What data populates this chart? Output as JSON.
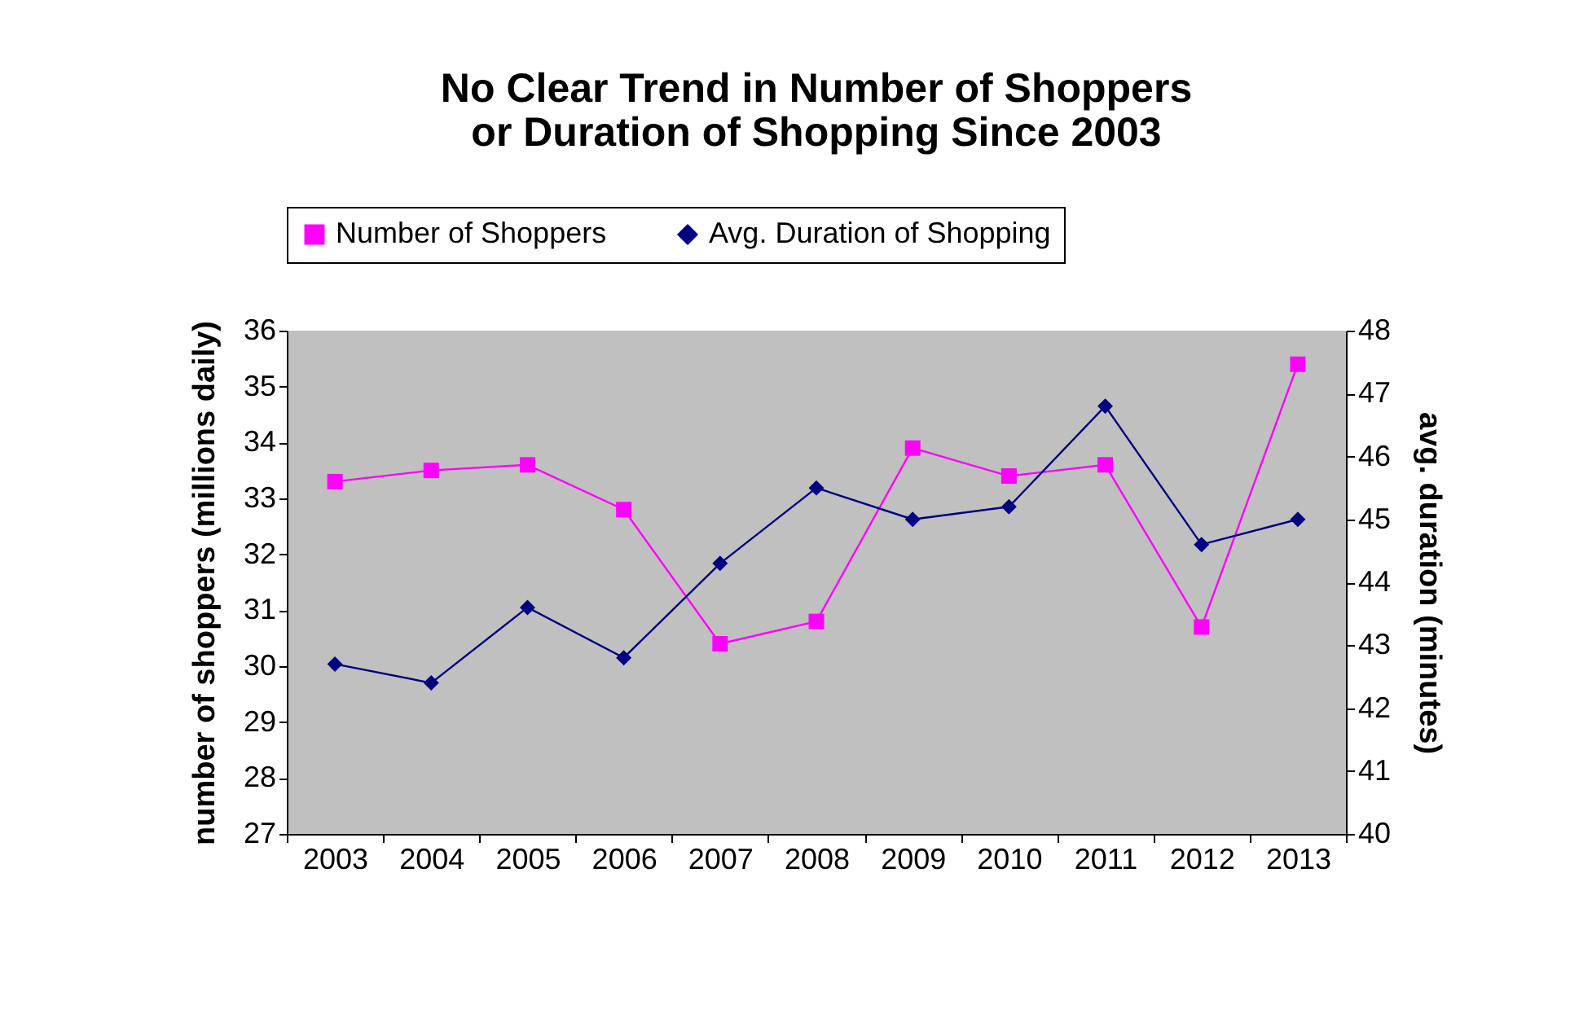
{
  "chart_data": {
    "type": "line",
    "title": [
      "No Clear Trend in Number of Shoppers",
      "or Duration of Shopping Since 2003"
    ],
    "categories": [
      "2003",
      "2004",
      "2005",
      "2006",
      "2007",
      "2008",
      "2009",
      "2010",
      "2011",
      "2012",
      "2013"
    ],
    "series": [
      {
        "name": "Number of Shoppers",
        "color": "#ff00ff",
        "marker": "square",
        "values": [
          33.3,
          33.5,
          33.6,
          32.8,
          30.4,
          30.8,
          33.9,
          33.4,
          33.6,
          30.7,
          35.4
        ]
      },
      {
        "name": "Avg. Duration of Shopping",
        "color": "#000080",
        "marker": "diamond",
        "axis": "y2",
        "values": [
          42.7,
          42.4,
          43.6,
          42.8,
          44.3,
          45.5,
          45.0,
          45.2,
          46.8,
          44.6,
          45.0
        ]
      }
    ],
    "ylabel": "number of shoppers (millions daily)",
    "y2label": "avg. duration (minutes)",
    "ylim": [
      27,
      36
    ],
    "yticks": [
      27,
      28,
      29,
      30,
      31,
      32,
      33,
      34,
      35,
      36
    ],
    "y2lim": [
      40,
      48
    ],
    "y2ticks": [
      40,
      41,
      42,
      43,
      44,
      45,
      46,
      47,
      48
    ],
    "legend": "top",
    "grid": false,
    "line_style": "solid"
  }
}
